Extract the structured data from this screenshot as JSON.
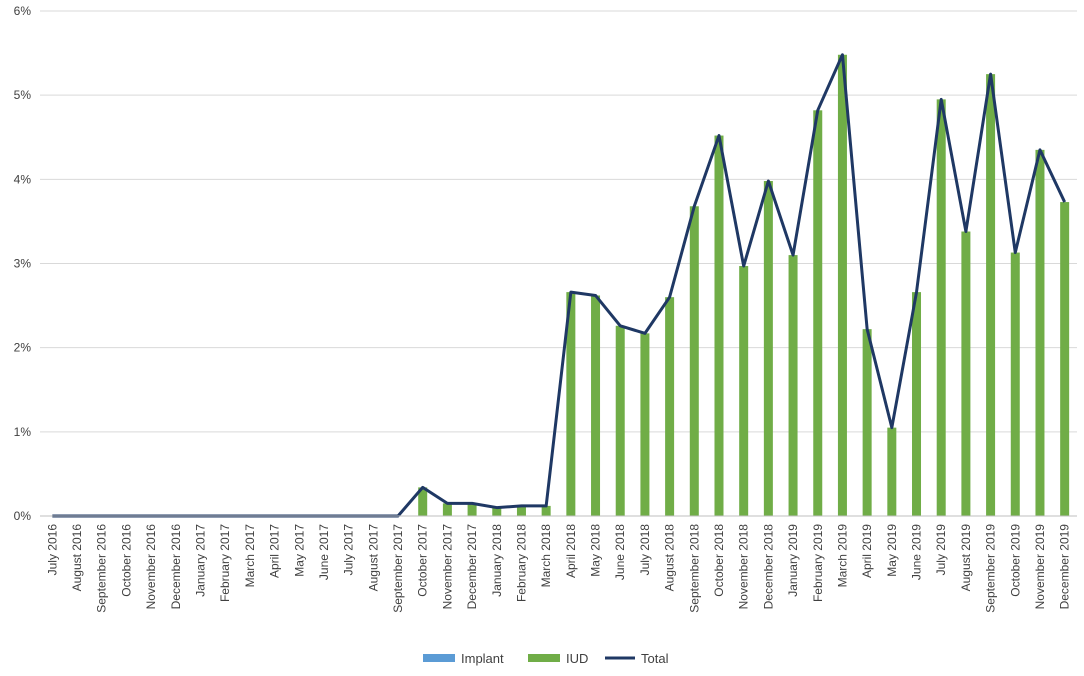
{
  "chart_data": {
    "type": "bar",
    "categories": [
      "July 2016",
      "August 2016",
      "September 2016",
      "October 2016",
      "November 2016",
      "December 2016",
      "January 2017",
      "February 2017",
      "March 2017",
      "April 2017",
      "May 2017",
      "June 2017",
      "July 2017",
      "August 2017",
      "September 2017",
      "October 2017",
      "November 2017",
      "December 2017",
      "January 2018",
      "February 2018",
      "March 2018",
      "April 2018",
      "May 2018",
      "June 2018",
      "July 2018",
      "August 2018",
      "September 2018",
      "October 2018",
      "November 2018",
      "December 2018",
      "January 2019",
      "February 2019",
      "March 2019",
      "April 2019",
      "May 2019",
      "June 2019",
      "July 2019",
      "August 2019",
      "September 2019",
      "October 2019",
      "November 2019",
      "December 2019"
    ],
    "series": [
      {
        "name": "Implant",
        "kind": "bar",
        "color": "#5b9bd5",
        "values": [
          0,
          0,
          0,
          0,
          0,
          0,
          0,
          0,
          0,
          0,
          0,
          0,
          0,
          0,
          0,
          0,
          0,
          0,
          0,
          0,
          0,
          0,
          0,
          0,
          0,
          0,
          0,
          0,
          0,
          0,
          0,
          0,
          0,
          0,
          0,
          0,
          0,
          0,
          0,
          0,
          0,
          0
        ]
      },
      {
        "name": "IUD",
        "kind": "bar",
        "color": "#70ad47",
        "values": [
          0,
          0,
          0,
          0,
          0,
          0,
          0,
          0,
          0,
          0,
          0,
          0,
          0,
          0,
          0,
          0.34,
          0.15,
          0.15,
          0.1,
          0.12,
          0.12,
          2.66,
          2.62,
          2.26,
          2.17,
          2.6,
          3.68,
          4.52,
          2.97,
          3.98,
          3.1,
          4.82,
          5.48,
          2.22,
          1.05,
          2.66,
          4.95,
          3.38,
          5.25,
          3.13,
          4.35,
          3.73
        ]
      },
      {
        "name": "Total",
        "kind": "line",
        "color": "#1f3864",
        "values": [
          0,
          0,
          0,
          0,
          0,
          0,
          0,
          0,
          0,
          0,
          0,
          0,
          0,
          0,
          0,
          0.34,
          0.15,
          0.15,
          0.1,
          0.12,
          0.12,
          2.66,
          2.62,
          2.26,
          2.17,
          2.6,
          3.68,
          4.52,
          2.97,
          3.98,
          3.1,
          4.82,
          5.48,
          2.22,
          1.05,
          2.66,
          4.95,
          3.38,
          5.25,
          3.13,
          4.35,
          3.73
        ]
      }
    ],
    "yticks": [
      "0%",
      "1%",
      "2%",
      "3%",
      "4%",
      "5%",
      "6%"
    ],
    "ylim": [
      0,
      6
    ],
    "grid": true,
    "legend": "bottom-center"
  }
}
